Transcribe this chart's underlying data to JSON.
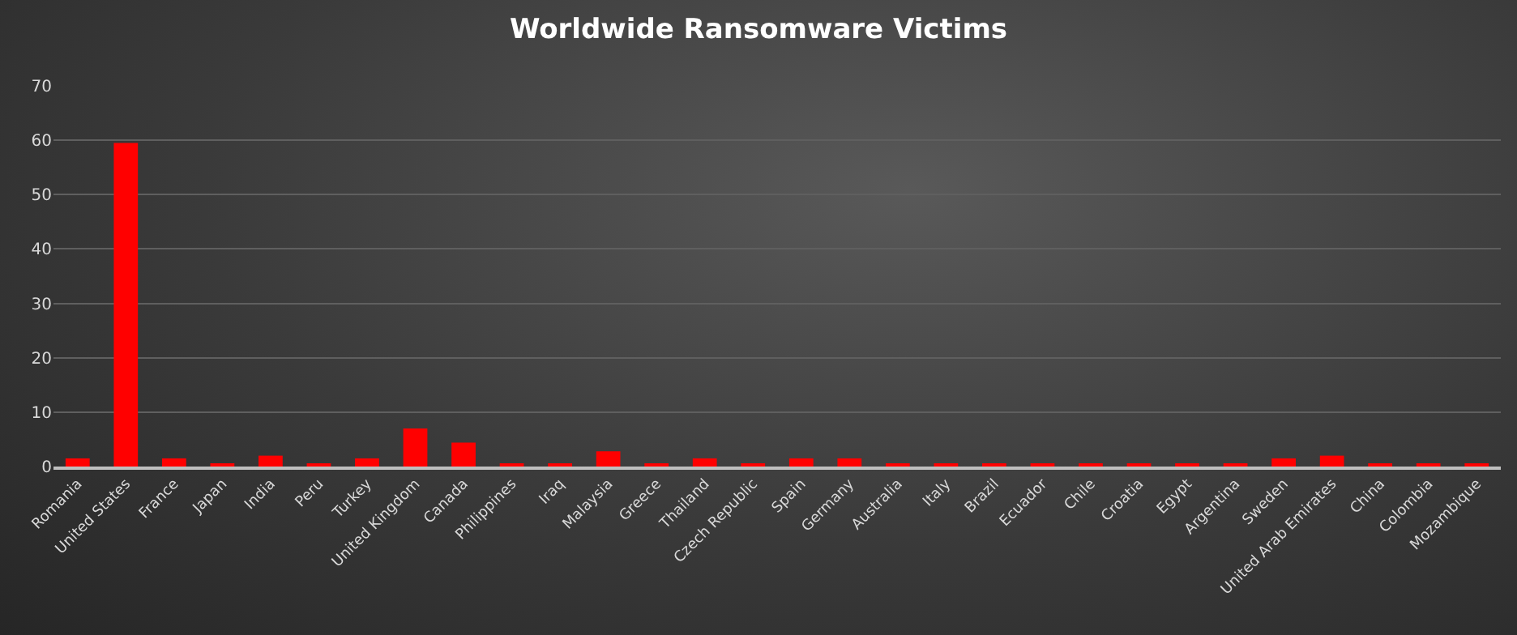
{
  "chart_data": {
    "type": "bar",
    "title": "Worldwide Ransomware Victims",
    "categories": [
      "Romania",
      "United States",
      "France",
      "Japan",
      "India",
      "Peru",
      "Turkey",
      "United Kingdom",
      "Canada",
      "Philippines",
      "Iraq",
      "Malaysia",
      "Greece",
      "Thailand",
      "Czech Republic",
      "Spain",
      "Germany",
      "Australia",
      "Italy",
      "Brazil",
      "Ecuador",
      "Chile",
      "Croatia",
      "Egypt",
      "Argentina",
      "Sweden",
      "United Arab Emirates",
      "China",
      "Colombia",
      "Mozambique"
    ],
    "values": [
      1.5,
      59.5,
      1.5,
      0.5,
      2,
      0.5,
      1.5,
      7,
      4.4,
      0.5,
      0.5,
      2.8,
      0.5,
      1.5,
      0.5,
      1.5,
      1.5,
      0.5,
      0.5,
      0.5,
      0.5,
      0.5,
      0.5,
      0.5,
      0.5,
      1.5,
      2,
      0.5,
      0.5,
      0.5
    ],
    "color": "#ff0000",
    "ylim": [
      0,
      70
    ],
    "yticks": [
      0,
      10,
      20,
      30,
      40,
      50,
      60,
      70
    ],
    "grid": "y",
    "legend": false
  }
}
